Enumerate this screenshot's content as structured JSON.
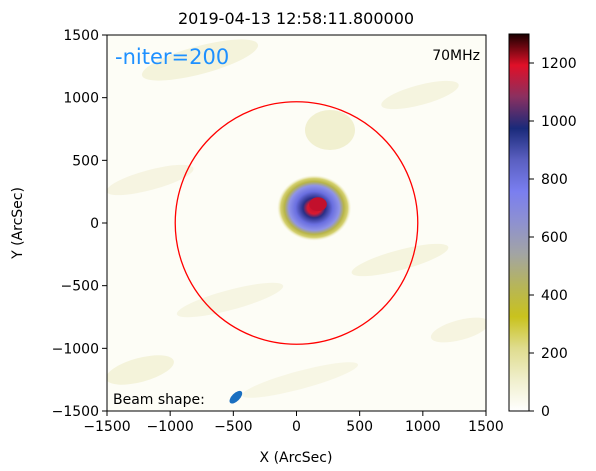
{
  "chart_data": {
    "type": "heatmap",
    "title": "2019-04-13 12:58:11.800000",
    "xlabel": "X (ArcSec)",
    "ylabel": "Y (ArcSec)",
    "xlim": [
      -1500,
      1500
    ],
    "ylim": [
      -1500,
      1500
    ],
    "xticks": [
      -1500,
      -1000,
      -500,
      0,
      500,
      1000,
      1500
    ],
    "yticks": [
      -1500,
      -1000,
      -500,
      0,
      500,
      1000,
      1500
    ],
    "xtick_labels": [
      "−1500",
      "−1000",
      "−500",
      "0",
      "500",
      "1000",
      "1500"
    ],
    "ytick_labels": [
      "−1500",
      "−1000",
      "−500",
      "0",
      "500",
      "1000",
      "1500"
    ],
    "colorbar": {
      "range": [
        0,
        1300
      ],
      "ticks": [
        0,
        200,
        400,
        600,
        800,
        1000,
        1200
      ],
      "tick_labels": [
        "0",
        "200",
        "400",
        "600",
        "800",
        "1000",
        "1200"
      ],
      "colormap": [
        "#ffffff",
        "#f0efcc",
        "#dfdc8e",
        "#c9c21d",
        "#b6b55a",
        "#a2a4a4",
        "#8e91d0",
        "#7a7ef0",
        "#5a5fc0",
        "#1a2a7a",
        "#8a3060",
        "#e01028",
        "#1a0000"
      ]
    },
    "annotations": {
      "niter": "-niter=200",
      "frequency": "70MHz",
      "beam_label": "Beam shape:"
    },
    "source": {
      "peak_x": 170,
      "peak_y": 150,
      "peak_value": 1300,
      "radius_x": 280,
      "radius_y": 250
    },
    "solar_limb": {
      "center_x": 0,
      "center_y": 0,
      "radius": 960,
      "color": "#ff0000"
    },
    "beam": {
      "center_x": -480,
      "center_y": -1390,
      "color": "#1a6fc0"
    },
    "colors": {
      "niter_text": "#1e90ff"
    }
  }
}
